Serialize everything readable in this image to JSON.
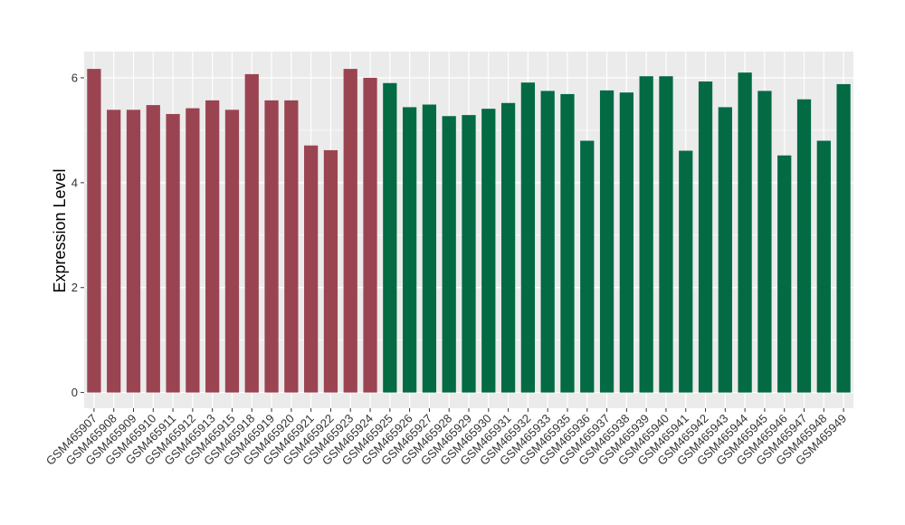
{
  "chart_data": {
    "type": "bar",
    "xlabel": "",
    "ylabel": "Expression Level",
    "ylim": [
      -0.3,
      6.5
    ],
    "yticks": [
      0,
      2,
      4,
      6
    ],
    "grid": true,
    "legend": "none",
    "colors": {
      "group1": "#9b4451",
      "group2": "#036a44",
      "panel": "#ebebeb",
      "gridline": "#ffffff"
    },
    "categories": [
      "GSM465907",
      "GSM465908",
      "GSM465909",
      "GSM465910",
      "GSM465911",
      "GSM465912",
      "GSM465913",
      "GSM465915",
      "GSM465918",
      "GSM465919",
      "GSM465920",
      "GSM465921",
      "GSM465922",
      "GSM465923",
      "GSM465924",
      "GSM465925",
      "GSM465926",
      "GSM465927",
      "GSM465928",
      "GSM465929",
      "GSM465930",
      "GSM465931",
      "GSM465932",
      "GSM465933",
      "GSM465935",
      "GSM465936",
      "GSM465937",
      "GSM465938",
      "GSM465939",
      "GSM465940",
      "GSM465941",
      "GSM465942",
      "GSM465943",
      "GSM465944",
      "GSM465945",
      "GSM465946",
      "GSM465947",
      "GSM465948",
      "GSM465949"
    ],
    "values": [
      6.17,
      5.39,
      5.39,
      5.48,
      5.31,
      5.42,
      5.57,
      5.39,
      6.07,
      5.57,
      5.57,
      4.71,
      4.62,
      6.17,
      6.0,
      5.9,
      5.44,
      5.49,
      5.27,
      5.29,
      5.41,
      5.52,
      5.91,
      5.75,
      5.69,
      4.8,
      5.76,
      5.72,
      6.03,
      6.03,
      4.61,
      5.93,
      5.44,
      6.1,
      5.75,
      4.52,
      5.59,
      4.8,
      5.88
    ],
    "groups": [
      1,
      1,
      1,
      1,
      1,
      1,
      1,
      1,
      1,
      1,
      1,
      1,
      1,
      1,
      1,
      2,
      2,
      2,
      2,
      2,
      2,
      2,
      2,
      2,
      2,
      2,
      2,
      2,
      2,
      2,
      2,
      2,
      2,
      2,
      2,
      2,
      2,
      2,
      2
    ]
  }
}
